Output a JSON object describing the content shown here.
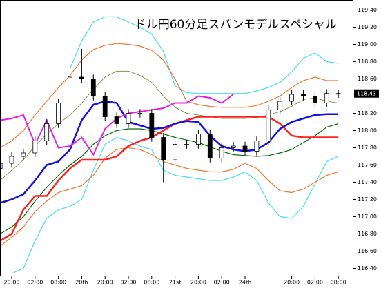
{
  "chart_data": {
    "type": "candlestick",
    "title": "ドル円60分足スパンモデルスペシャル",
    "categories": [
      null,
      "20:00",
      null,
      "02:00",
      null,
      "08:00",
      null,
      "20th",
      null,
      "20:00",
      null,
      "02:00",
      null,
      "08:00",
      null,
      "21st",
      null,
      "20:00",
      null,
      "02:00",
      null,
      "24th",
      null,
      null,
      null,
      "20:00",
      null,
      "02:00",
      null,
      "08:00"
    ],
    "ylim": [
      116.3,
      119.5
    ],
    "yticks": [
      {
        "value": 116.4,
        "label": "116.40"
      },
      {
        "value": 116.6,
        "label": "116.60"
      },
      {
        "value": 116.8,
        "label": "116.80"
      },
      {
        "value": 117.0,
        "label": "117.00"
      },
      {
        "value": 117.2,
        "label": "117.20"
      },
      {
        "value": 117.4,
        "label": "117.40"
      },
      {
        "value": 117.6,
        "label": "117.60"
      },
      {
        "value": 117.8,
        "label": "117.80"
      },
      {
        "value": 118.0,
        "label": "118.00"
      },
      {
        "value": 118.2,
        "label": "118.20"
      },
      {
        "value": 118.6,
        "label": "118.60"
      },
      {
        "value": 118.8,
        "label": "118.80"
      },
      {
        "value": 119.0,
        "label": "119.00"
      },
      {
        "value": 119.2,
        "label": "119.20"
      },
      {
        "value": 119.4,
        "label": "119.40"
      }
    ],
    "last_price": 118.43,
    "candles": {
      "open": [
        117.56,
        117.62,
        117.7,
        117.74,
        117.88,
        118.08,
        118.32,
        118.62,
        118.6,
        118.4,
        118.16,
        118.08,
        118.2,
        118.2,
        117.92,
        117.66,
        117.84,
        117.84,
        117.96,
        117.68,
        117.8,
        117.82,
        117.76,
        117.88,
        118.24,
        118.34,
        118.42,
        118.4,
        118.32,
        118.43
      ],
      "high": [
        117.67,
        117.75,
        117.79,
        117.93,
        118.13,
        118.37,
        118.67,
        118.95,
        118.65,
        118.45,
        118.21,
        118.25,
        118.25,
        118.25,
        117.97,
        117.89,
        117.89,
        118.01,
        118.01,
        117.85,
        117.87,
        117.87,
        117.93,
        118.29,
        118.39,
        118.47,
        118.47,
        118.45,
        118.48,
        118.47
      ],
      "low": [
        117.51,
        117.57,
        117.65,
        117.69,
        117.83,
        118.03,
        118.27,
        118.55,
        118.35,
        118.11,
        118.03,
        118.03,
        118.15,
        117.87,
        117.4,
        117.61,
        117.79,
        117.79,
        117.63,
        117.63,
        117.75,
        117.71,
        117.71,
        117.83,
        118.19,
        118.29,
        118.35,
        118.27,
        118.27,
        118.38
      ],
      "close": [
        117.62,
        117.7,
        117.74,
        117.88,
        118.08,
        118.32,
        118.62,
        118.6,
        118.4,
        118.16,
        118.08,
        118.2,
        118.2,
        117.92,
        117.66,
        117.84,
        117.84,
        117.96,
        117.68,
        117.8,
        117.82,
        117.76,
        117.88,
        118.24,
        118.34,
        118.42,
        118.4,
        118.32,
        118.43,
        118.43
      ]
    },
    "series": [
      {
        "color": "#40e0f0",
        "values": [
          null,
          null,
          null,
          null,
          null,
          null,
          118.72,
          119.04,
          119.26,
          119.32,
          119.32,
          119.26,
          119.2,
          119.12,
          118.92,
          118.52,
          118.44,
          118.43,
          118.43,
          118.43,
          118.43,
          118.43,
          118.46,
          118.5,
          118.56,
          118.68,
          118.84,
          118.9,
          118.8,
          118.78
        ]
      },
      {
        "color": "#40e0f0",
        "values": [
          null,
          116.34,
          116.4,
          116.72,
          116.98,
          117.08,
          117.12,
          117.2,
          117.54,
          117.84,
          117.92,
          117.88,
          117.82,
          117.78,
          117.54,
          117.48,
          117.46,
          117.44,
          117.42,
          117.42,
          117.46,
          117.52,
          117.42,
          117.16,
          117.0,
          116.98,
          117.12,
          117.38,
          117.64,
          117.7
        ]
      },
      {
        "color": "#f07830",
        "values": [
          117.8,
          117.88,
          118.0,
          118.18,
          118.34,
          118.5,
          118.64,
          118.82,
          118.94,
          118.99,
          119.01,
          119.0,
          118.98,
          118.93,
          118.82,
          118.6,
          118.34,
          118.3,
          118.28,
          118.27,
          118.27,
          118.27,
          118.29,
          118.34,
          118.4,
          118.5,
          118.58,
          118.62,
          118.58,
          118.58
        ]
      },
      {
        "color": "#f07830",
        "values": [
          116.66,
          116.76,
          116.88,
          117.06,
          117.18,
          117.28,
          117.32,
          117.36,
          117.48,
          117.68,
          117.78,
          117.8,
          117.78,
          117.72,
          117.64,
          117.6,
          117.56,
          117.54,
          117.52,
          117.52,
          117.55,
          117.62,
          117.56,
          117.42,
          117.3,
          117.28,
          117.32,
          117.4,
          117.48,
          117.52
        ]
      },
      {
        "color": "#5a8a20",
        "values": [
          117.42,
          117.54,
          117.66,
          117.82,
          117.96,
          118.08,
          118.18,
          118.32,
          118.48,
          118.62,
          118.69,
          118.69,
          118.64,
          118.56,
          118.4,
          118.27,
          118.2,
          118.18,
          118.16,
          118.14,
          118.14,
          118.14,
          118.15,
          118.18,
          118.22,
          118.28,
          118.36,
          118.38,
          118.34,
          118.32
        ]
      },
      {
        "color": "#0a6a10",
        "values": [
          116.8,
          116.88,
          117.0,
          117.18,
          117.34,
          117.48,
          117.6,
          117.7,
          117.84,
          117.94,
          118.0,
          118.02,
          118.02,
          118.0,
          117.96,
          117.92,
          117.89,
          117.86,
          117.81,
          117.76,
          117.72,
          117.71,
          117.7,
          117.71,
          117.74,
          117.78,
          117.86,
          117.94,
          118.04,
          118.08
        ]
      },
      {
        "color": "#ff2020",
        "values": [
          116.72,
          116.8,
          117.08,
          117.24,
          117.24,
          117.42,
          117.56,
          117.66,
          117.66,
          117.66,
          117.7,
          117.82,
          117.88,
          117.92,
          118.0,
          118.08,
          118.12,
          118.16,
          118.16,
          118.16,
          118.16,
          118.16,
          118.16,
          118.16,
          118.08,
          117.94,
          117.92,
          117.92,
          117.92,
          117.92
        ]
      },
      {
        "color": "#1010e0",
        "values": [
          117.16,
          117.2,
          117.26,
          117.42,
          117.6,
          117.64,
          117.78,
          118.12,
          118.3,
          118.34,
          118.32,
          118.1,
          118.06,
          118.02,
          118.03,
          118.08,
          118.11,
          118.1,
          117.94,
          117.82,
          117.78,
          117.76,
          117.78,
          117.86,
          118.02,
          118.1,
          118.14,
          118.18,
          118.19,
          118.19
        ]
      },
      {
        "color": "#e020e0",
        "values": [
          118.12,
          118.14,
          118.18,
          117.84,
          118.12,
          117.8,
          117.82,
          117.92,
          117.72,
          118.02,
          118.14,
          118.2,
          118.22,
          118.24,
          118.26,
          118.32,
          118.32,
          118.4,
          118.38,
          118.32,
          118.42,
          null,
          null,
          null,
          null,
          null,
          null,
          null,
          null,
          null
        ]
      }
    ]
  }
}
